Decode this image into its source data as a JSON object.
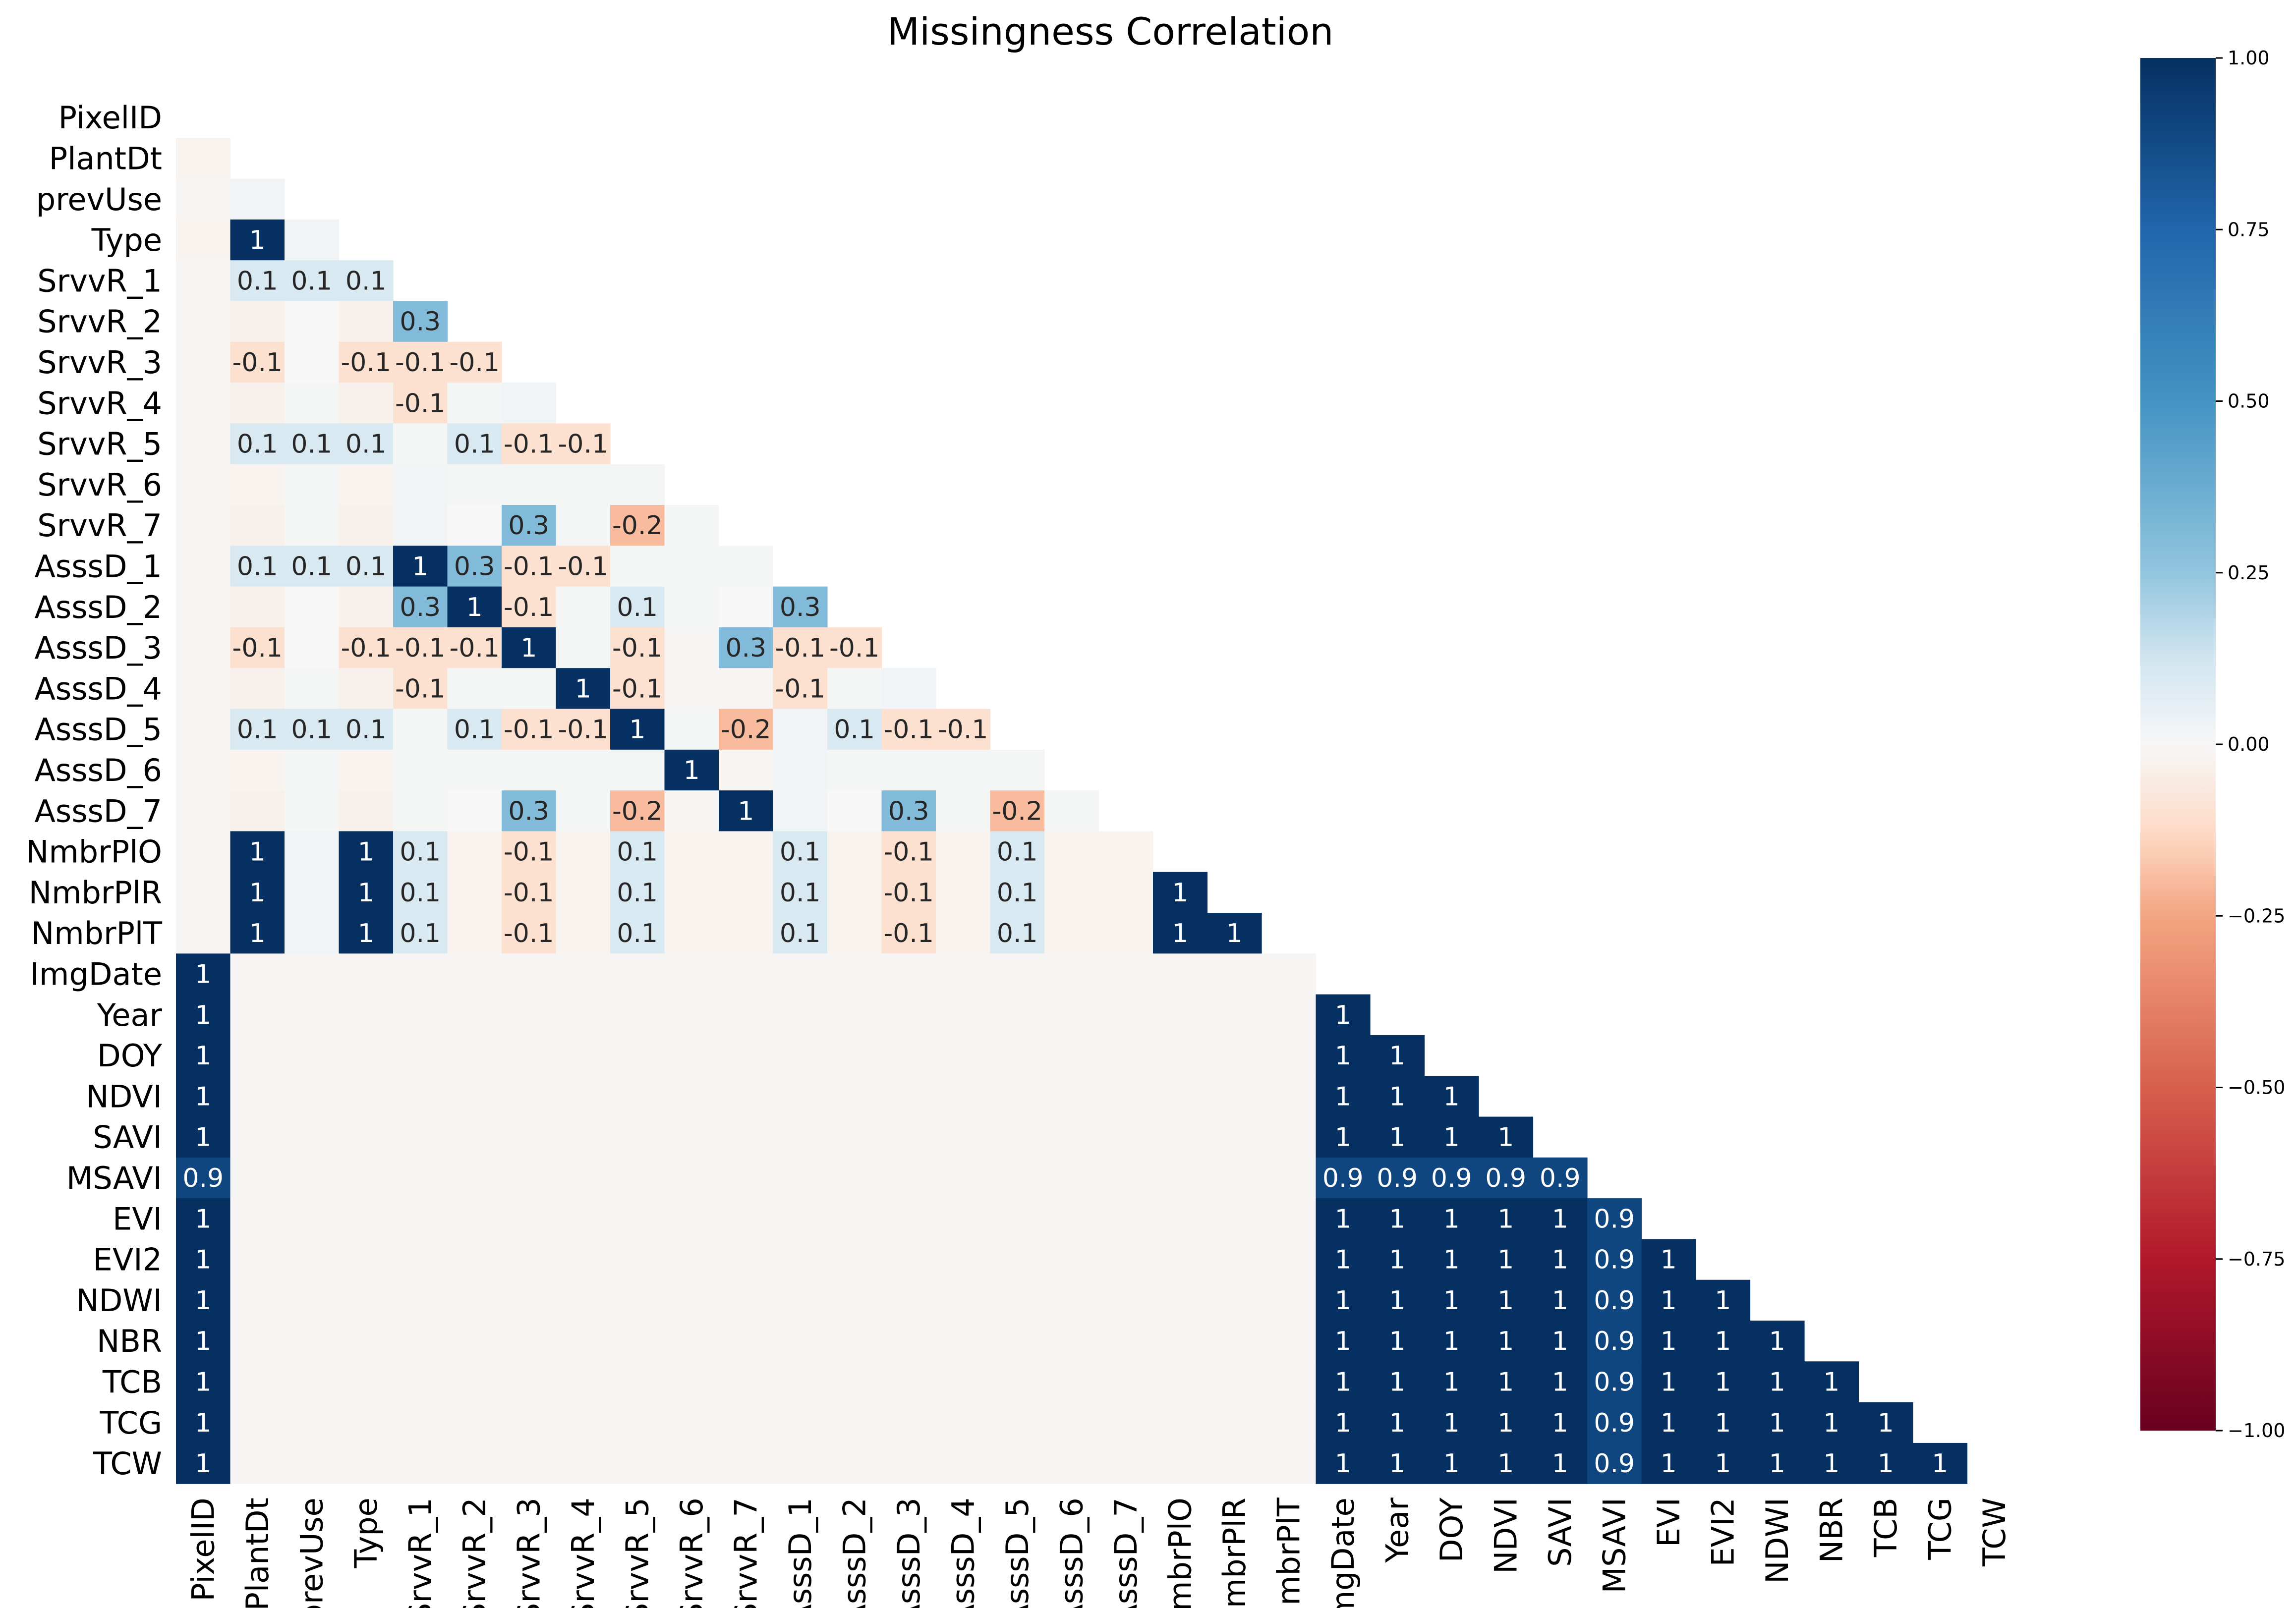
{
  "chart_data": {
    "type": "heatmap",
    "title": "Missingness Correlation",
    "variables": [
      "PixelID",
      "PlantDt",
      "prevUse",
      "Type",
      "SrvvR_1",
      "SrvvR_2",
      "SrvvR_3",
      "SrvvR_4",
      "SrvvR_5",
      "SrvvR_6",
      "SrvvR_7",
      "AsssD_1",
      "AsssD_2",
      "AsssD_3",
      "AsssD_4",
      "AsssD_5",
      "AsssD_6",
      "AsssD_7",
      "NmbrPlO",
      "NmbrPlR",
      "NmbrPlT",
      "ImgDate",
      "Year",
      "DOY",
      "NDVI",
      "SAVI",
      "MSAVI",
      "EVI",
      "EVI2",
      "NDWI",
      "NBR",
      "TCB",
      "TCG",
      "TCW"
    ],
    "mask": "upper-triangle-including-diagonal",
    "colormap": "RdBu",
    "vmin": -1,
    "vmax": 1,
    "colorbar_ticks": [
      1.0,
      0.75,
      0.5,
      0.25,
      0.0,
      -0.25,
      -0.5,
      -0.75,
      -1.0
    ],
    "colorbar_tick_labels": [
      "1.00",
      "0.75",
      "0.50",
      "0.25",
      "0.00",
      "−0.25",
      "−0.50",
      "−0.75",
      "−1.00"
    ],
    "matrix": [
      [],
      [
        -0.02
      ],
      [
        -0.01,
        0.02
      ],
      [
        -0.02,
        1,
        0.02
      ],
      [
        -0.01,
        0.1,
        0.1,
        0.1
      ],
      [
        -0.01,
        -0.03,
        0,
        -0.03,
        0.3
      ],
      [
        -0.01,
        -0.1,
        0,
        -0.1,
        -0.1,
        -0.1
      ],
      [
        -0.01,
        -0.03,
        0.01,
        -0.03,
        -0.1,
        0.01,
        0.02
      ],
      [
        -0.01,
        0.1,
        0.1,
        0.1,
        0.01,
        0.1,
        -0.1,
        -0.1
      ],
      [
        -0.01,
        -0.02,
        0.01,
        -0.02,
        0.02,
        0.01,
        0.01,
        0.01,
        0.01
      ],
      [
        -0.01,
        -0.03,
        0.01,
        -0.03,
        0.02,
        0,
        0.3,
        0.01,
        -0.2,
        0.01
      ],
      [
        -0.01,
        0.1,
        0.1,
        0.1,
        1,
        0.3,
        -0.1,
        -0.1,
        0.01,
        0.01,
        0.01
      ],
      [
        -0.01,
        -0.03,
        0,
        -0.03,
        0.3,
        1,
        -0.1,
        0.01,
        0.1,
        0.01,
        0,
        0.3
      ],
      [
        -0.01,
        -0.1,
        0,
        -0.1,
        -0.1,
        -0.1,
        1,
        0.01,
        -0.1,
        -0.01,
        0.3,
        -0.1,
        -0.1
      ],
      [
        -0.01,
        -0.03,
        0.01,
        -0.03,
        -0.1,
        0.01,
        0.01,
        1,
        -0.1,
        -0.01,
        -0.01,
        -0.1,
        0.01,
        0.02
      ],
      [
        -0.01,
        0.1,
        0.1,
        0.1,
        0.01,
        0.1,
        -0.1,
        -0.1,
        1,
        0.01,
        -0.2,
        0.02,
        0.1,
        -0.1,
        -0.1
      ],
      [
        -0.01,
        -0.02,
        0.01,
        -0.02,
        0.01,
        0.01,
        0.01,
        0.01,
        0.01,
        1,
        -0.01,
        0.02,
        0.01,
        0.01,
        0.01,
        0.01
      ],
      [
        -0.01,
        -0.03,
        0.01,
        -0.03,
        0.01,
        0,
        0.3,
        0.01,
        -0.2,
        -0.01,
        1,
        0.02,
        0,
        0.3,
        0.01,
        -0.2,
        0.01
      ],
      [
        -0.01,
        1,
        0.02,
        1,
        0.1,
        -0.02,
        -0.1,
        -0.02,
        0.1,
        -0.02,
        -0.02,
        0.1,
        -0.02,
        -0.1,
        -0.02,
        0.1,
        -0.02,
        -0.02
      ],
      [
        -0.01,
        1,
        0.02,
        1,
        0.1,
        -0.02,
        -0.1,
        -0.02,
        0.1,
        -0.02,
        -0.02,
        0.1,
        -0.02,
        -0.1,
        -0.02,
        0.1,
        -0.02,
        -0.02,
        1
      ],
      [
        -0.01,
        1,
        0.02,
        1,
        0.1,
        -0.02,
        -0.1,
        -0.02,
        0.1,
        -0.02,
        -0.02,
        0.1,
        -0.02,
        -0.1,
        -0.02,
        0.1,
        -0.02,
        -0.02,
        1,
        1
      ],
      [
        1,
        -0.01,
        -0.01,
        -0.01,
        -0.01,
        -0.01,
        -0.01,
        -0.01,
        -0.01,
        -0.01,
        -0.01,
        -0.01,
        -0.01,
        -0.01,
        -0.01,
        -0.01,
        -0.01,
        -0.01,
        -0.01,
        -0.01,
        -0.01
      ],
      [
        1,
        -0.01,
        -0.01,
        -0.01,
        -0.01,
        -0.01,
        -0.01,
        -0.01,
        -0.01,
        -0.01,
        -0.01,
        -0.01,
        -0.01,
        -0.01,
        -0.01,
        -0.01,
        -0.01,
        -0.01,
        -0.01,
        -0.01,
        -0.01,
        1
      ],
      [
        1,
        -0.01,
        -0.01,
        -0.01,
        -0.01,
        -0.01,
        -0.01,
        -0.01,
        -0.01,
        -0.01,
        -0.01,
        -0.01,
        -0.01,
        -0.01,
        -0.01,
        -0.01,
        -0.01,
        -0.01,
        -0.01,
        -0.01,
        -0.01,
        1,
        1
      ],
      [
        1,
        -0.01,
        -0.01,
        -0.01,
        -0.01,
        -0.01,
        -0.01,
        -0.01,
        -0.01,
        -0.01,
        -0.01,
        -0.01,
        -0.01,
        -0.01,
        -0.01,
        -0.01,
        -0.01,
        -0.01,
        -0.01,
        -0.01,
        -0.01,
        1,
        1,
        1
      ],
      [
        1,
        -0.01,
        -0.01,
        -0.01,
        -0.01,
        -0.01,
        -0.01,
        -0.01,
        -0.01,
        -0.01,
        -0.01,
        -0.01,
        -0.01,
        -0.01,
        -0.01,
        -0.01,
        -0.01,
        -0.01,
        -0.01,
        -0.01,
        -0.01,
        1,
        1,
        1,
        1
      ],
      [
        0.9,
        -0.01,
        -0.01,
        -0.01,
        -0.01,
        -0.01,
        -0.01,
        -0.01,
        -0.01,
        -0.01,
        -0.01,
        -0.01,
        -0.01,
        -0.01,
        -0.01,
        -0.01,
        -0.01,
        -0.01,
        -0.01,
        -0.01,
        -0.01,
        0.9,
        0.9,
        0.9,
        0.9,
        0.9
      ],
      [
        1,
        -0.01,
        -0.01,
        -0.01,
        -0.01,
        -0.01,
        -0.01,
        -0.01,
        -0.01,
        -0.01,
        -0.01,
        -0.01,
        -0.01,
        -0.01,
        -0.01,
        -0.01,
        -0.01,
        -0.01,
        -0.01,
        -0.01,
        -0.01,
        1,
        1,
        1,
        1,
        1,
        0.9
      ],
      [
        1,
        -0.01,
        -0.01,
        -0.01,
        -0.01,
        -0.01,
        -0.01,
        -0.01,
        -0.01,
        -0.01,
        -0.01,
        -0.01,
        -0.01,
        -0.01,
        -0.01,
        -0.01,
        -0.01,
        -0.01,
        -0.01,
        -0.01,
        -0.01,
        1,
        1,
        1,
        1,
        1,
        0.9,
        1
      ],
      [
        1,
        -0.01,
        -0.01,
        -0.01,
        -0.01,
        -0.01,
        -0.01,
        -0.01,
        -0.01,
        -0.01,
        -0.01,
        -0.01,
        -0.01,
        -0.01,
        -0.01,
        -0.01,
        -0.01,
        -0.01,
        -0.01,
        -0.01,
        -0.01,
        1,
        1,
        1,
        1,
        1,
        0.9,
        1,
        1
      ],
      [
        1,
        -0.01,
        -0.01,
        -0.01,
        -0.01,
        -0.01,
        -0.01,
        -0.01,
        -0.01,
        -0.01,
        -0.01,
        -0.01,
        -0.01,
        -0.01,
        -0.01,
        -0.01,
        -0.01,
        -0.01,
        -0.01,
        -0.01,
        -0.01,
        1,
        1,
        1,
        1,
        1,
        0.9,
        1,
        1,
        1
      ],
      [
        1,
        -0.01,
        -0.01,
        -0.01,
        -0.01,
        -0.01,
        -0.01,
        -0.01,
        -0.01,
        -0.01,
        -0.01,
        -0.01,
        -0.01,
        -0.01,
        -0.01,
        -0.01,
        -0.01,
        -0.01,
        -0.01,
        -0.01,
        -0.01,
        1,
        1,
        1,
        1,
        1,
        0.9,
        1,
        1,
        1,
        1
      ],
      [
        1,
        -0.01,
        -0.01,
        -0.01,
        -0.01,
        -0.01,
        -0.01,
        -0.01,
        -0.01,
        -0.01,
        -0.01,
        -0.01,
        -0.01,
        -0.01,
        -0.01,
        -0.01,
        -0.01,
        -0.01,
        -0.01,
        -0.01,
        -0.01,
        1,
        1,
        1,
        1,
        1,
        0.9,
        1,
        1,
        1,
        1,
        1
      ],
      [
        1,
        -0.01,
        -0.01,
        -0.01,
        -0.01,
        -0.01,
        -0.01,
        -0.01,
        -0.01,
        -0.01,
        -0.01,
        -0.01,
        -0.01,
        -0.01,
        -0.01,
        -0.01,
        -0.01,
        -0.01,
        -0.01,
        -0.01,
        -0.01,
        1,
        1,
        1,
        1,
        1,
        0.9,
        1,
        1,
        1,
        1,
        1,
        1
      ]
    ]
  }
}
